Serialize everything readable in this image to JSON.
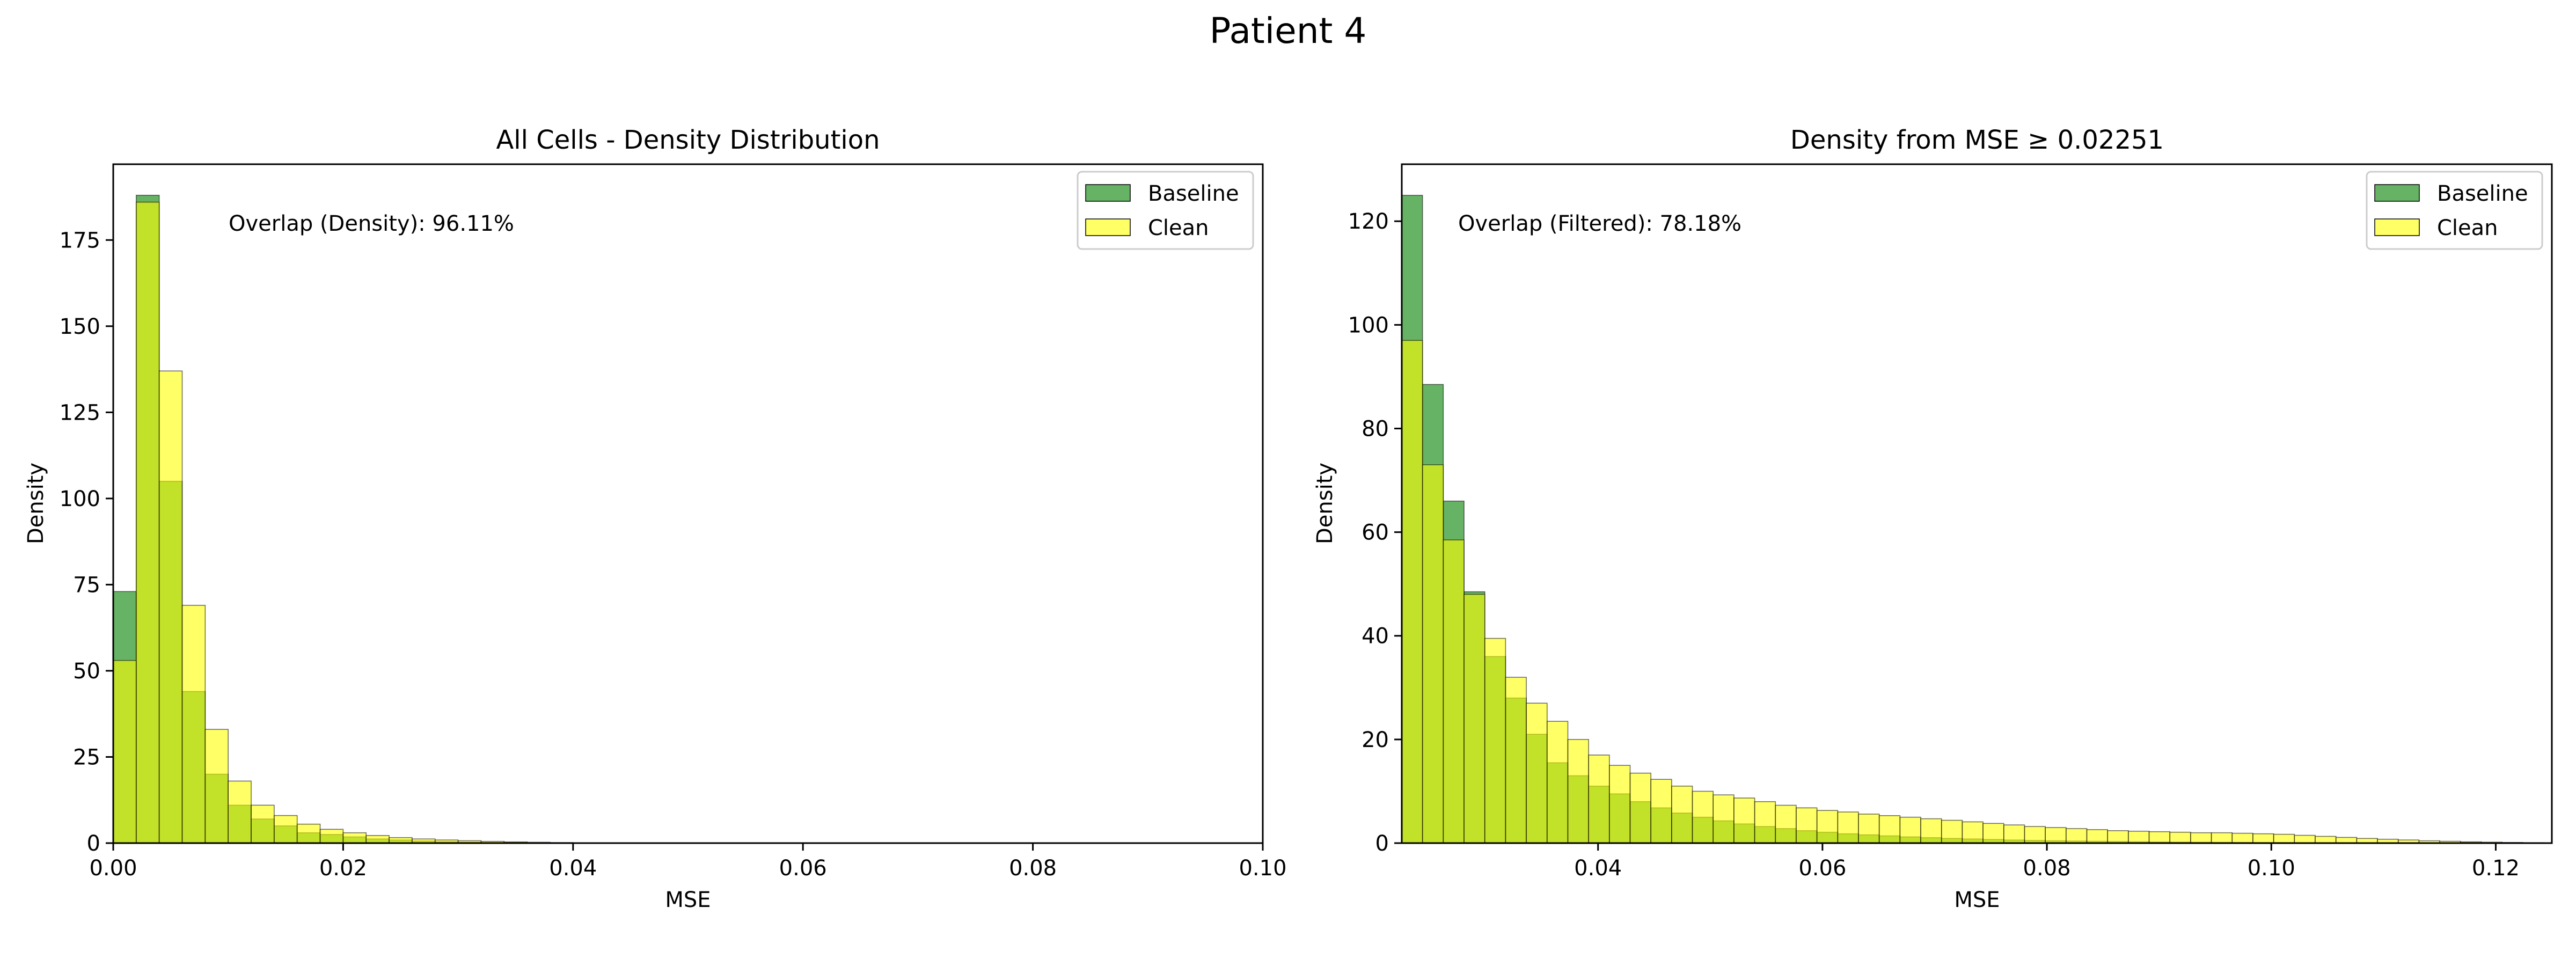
{
  "figure": {
    "suptitle": "Patient 4"
  },
  "colors": {
    "baseline": "#008000",
    "clean": "#ffff00",
    "edge": "#000000"
  },
  "chart_data": [
    {
      "type": "histogram",
      "title": "All Cells - Density Distribution",
      "xlabel": "MSE",
      "ylabel": "Density",
      "xlim": [
        0.0,
        0.1
      ],
      "ylim": [
        0,
        197
      ],
      "xticks": [
        0.0,
        0.02,
        0.04,
        0.06,
        0.08,
        0.1
      ],
      "xtick_labels": [
        "0.00",
        "0.02",
        "0.04",
        "0.06",
        "0.08",
        "0.10"
      ],
      "yticks": [
        0,
        25,
        50,
        75,
        100,
        125,
        150,
        175
      ],
      "annotation": "Overlap (Density): 96.11%",
      "legend": {
        "position": "upper-right",
        "entries": [
          "Baseline",
          "Clean"
        ]
      },
      "series": [
        {
          "name": "Baseline",
          "bin_start": 0.0,
          "bin_width": 0.002,
          "values": [
            73,
            188,
            105,
            44,
            20,
            11,
            7,
            5,
            3,
            2.5,
            1.8,
            1.2,
            0.9,
            0.6,
            0.4,
            0.3,
            0.2,
            0.15,
            0.1,
            0.08,
            0.05,
            0.04,
            0.03
          ]
        },
        {
          "name": "Clean",
          "bin_start": 0.0,
          "bin_width": 0.002,
          "values": [
            53,
            186,
            137,
            69,
            33,
            18,
            11,
            8,
            5.5,
            4,
            3,
            2.2,
            1.6,
            1.2,
            0.9,
            0.7,
            0.5,
            0.35,
            0.25,
            0.15,
            0.1,
            0.06,
            0.04
          ]
        }
      ]
    },
    {
      "type": "histogram",
      "title": "Density from MSE ≥ 0.02251",
      "xlabel": "MSE",
      "ylabel": "Density",
      "xlim": [
        0.02251,
        0.125
      ],
      "ylim": [
        0,
        131
      ],
      "xticks": [
        0.04,
        0.06,
        0.08,
        0.1,
        0.12
      ],
      "xtick_labels": [
        "0.04",
        "0.06",
        "0.08",
        "0.10",
        "0.12"
      ],
      "yticks": [
        0,
        20,
        40,
        60,
        80,
        100,
        120
      ],
      "annotation": "Overlap (Filtered): 78.18%",
      "legend": {
        "position": "upper-right",
        "entries": [
          "Baseline",
          "Clean"
        ]
      },
      "series": [
        {
          "name": "Baseline",
          "bin_start": 0.02251,
          "bin_width": 0.00185,
          "values": [
            125,
            88.5,
            66,
            48.5,
            36,
            28,
            21,
            15.5,
            13,
            11,
            9.5,
            8,
            6.8,
            5.8,
            5,
            4.3,
            3.7,
            3.2,
            2.8,
            2.4,
            2.1,
            1.8,
            1.6,
            1.4,
            1.2,
            1.05,
            0.9,
            0.8,
            0.7,
            0.6,
            0.52,
            0.46,
            0.4,
            0.35,
            0.3,
            0.26,
            0.22,
            0.2,
            0.17,
            0.15,
            0.13,
            0.11,
            0.1,
            0.08,
            0.07,
            0.06,
            0.05,
            0.04,
            0.03
          ]
        },
        {
          "name": "Clean",
          "bin_start": 0.02251,
          "bin_width": 0.00185,
          "values": [
            97,
            73,
            58.5,
            48,
            39.5,
            32,
            27,
            23.5,
            20,
            17,
            15,
            13.5,
            12.3,
            11,
            10,
            9.3,
            8.7,
            8,
            7.3,
            6.8,
            6.3,
            6,
            5.6,
            5.3,
            5,
            4.7,
            4.4,
            4.1,
            3.8,
            3.5,
            3.2,
            3,
            2.8,
            2.6,
            2.4,
            2.3,
            2.2,
            2.1,
            2,
            2,
            1.9,
            1.8,
            1.7,
            1.5,
            1.3,
            1.1,
            0.9,
            0.75,
            0.6,
            0.45,
            0.35,
            0.25,
            0.18,
            0.12,
            0.08,
            0.05
          ]
        }
      ]
    }
  ]
}
